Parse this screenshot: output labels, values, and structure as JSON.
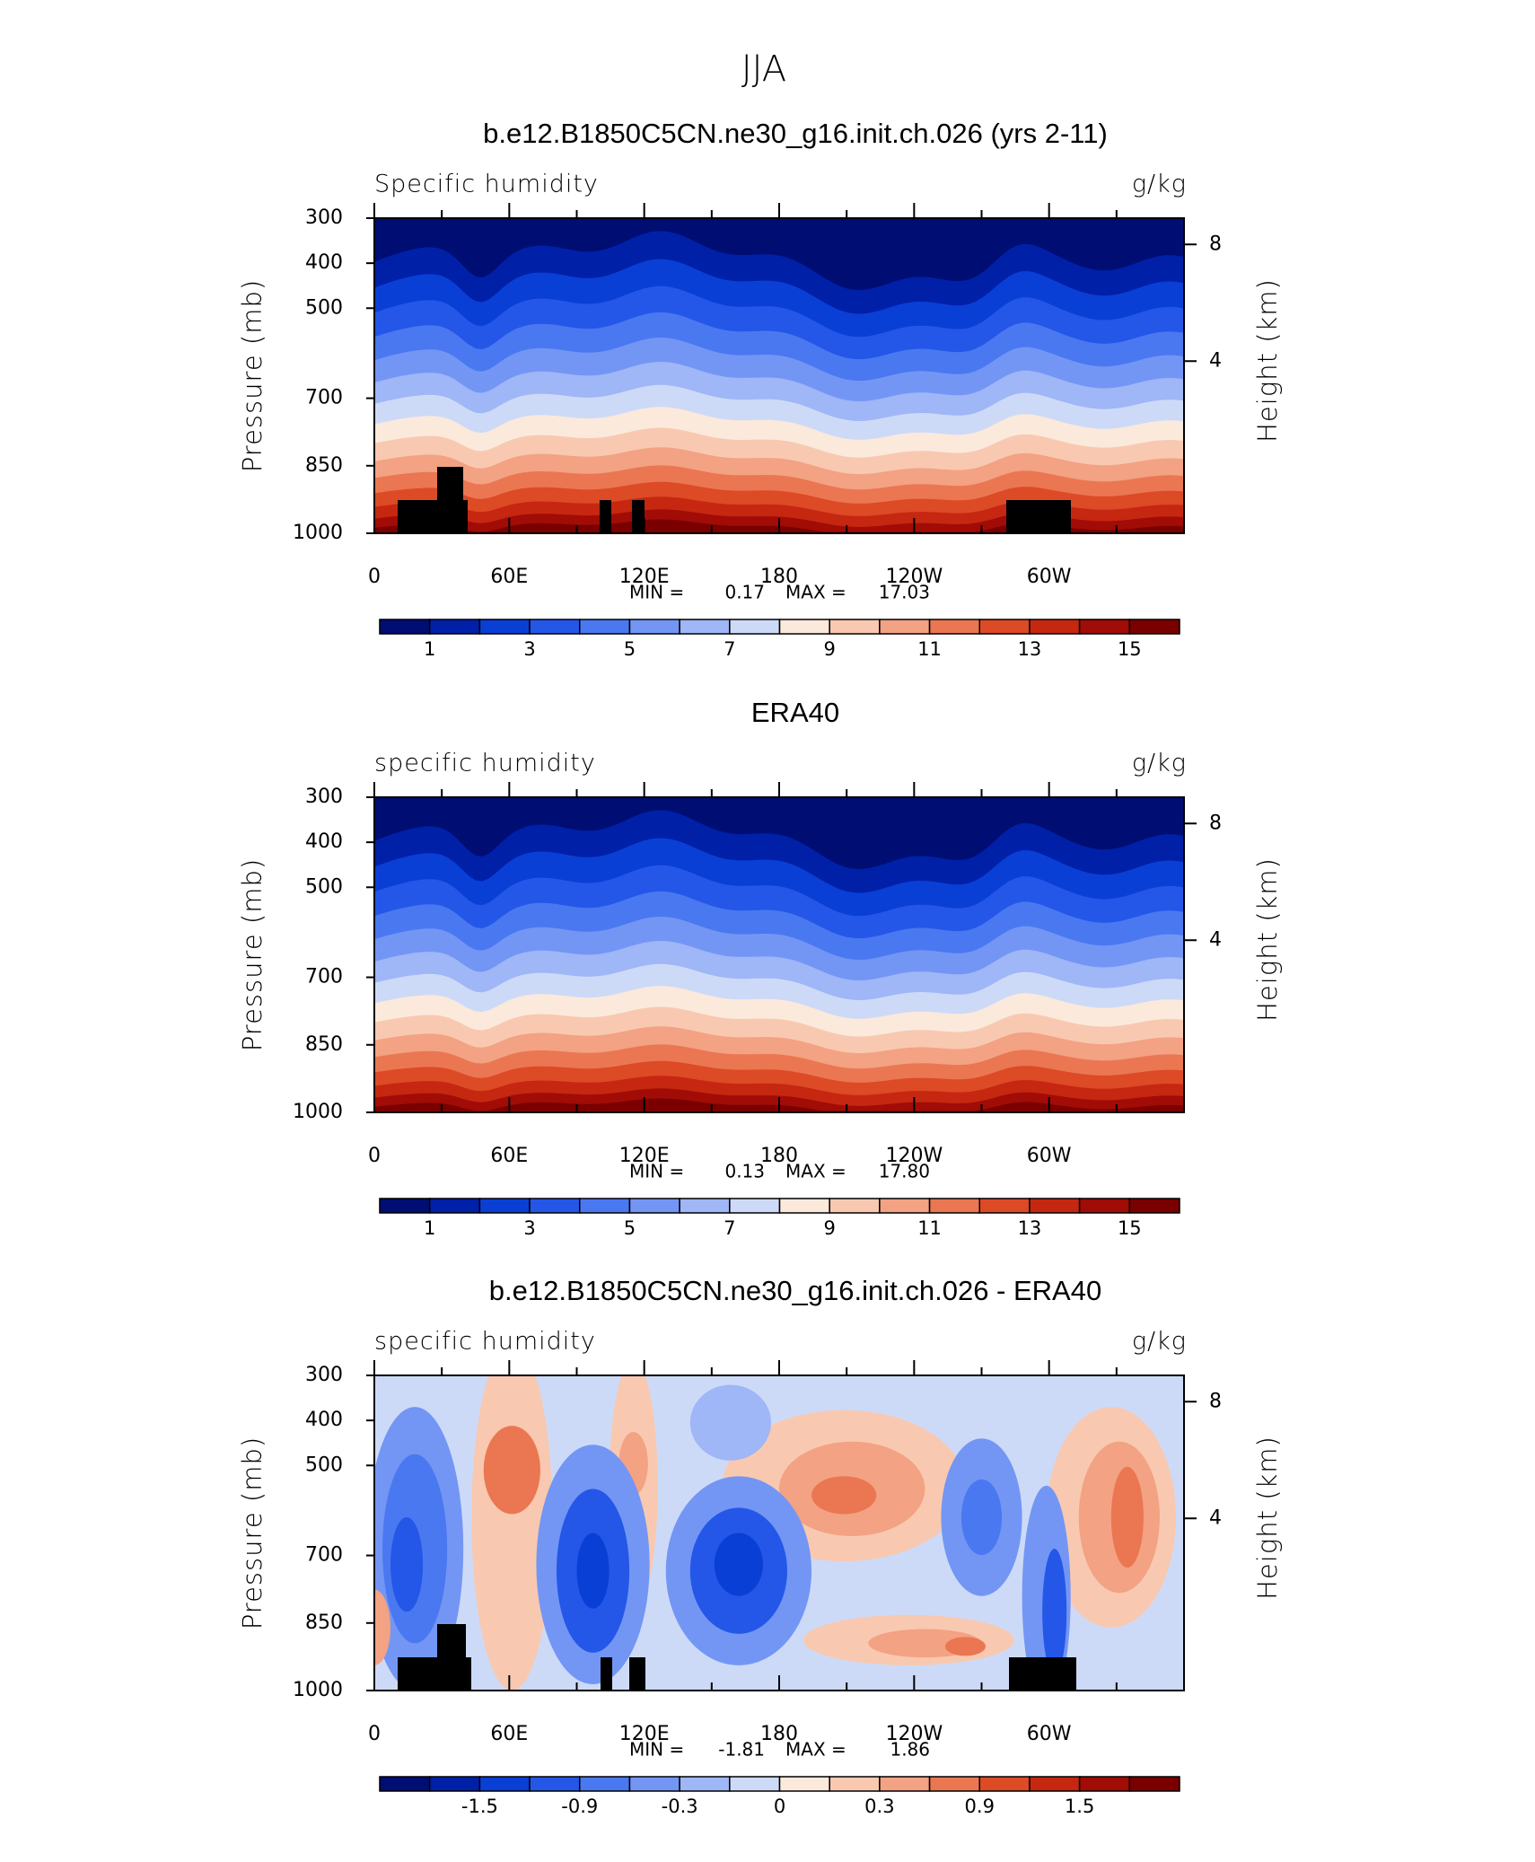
{
  "title": "JJA",
  "chart_data": [
    {
      "type": "contour",
      "title": "b.e12.B1850C5CN.ne30_g16.init.ch.026 (yrs 2-11)",
      "subtitle_left": "Specific humidity",
      "units": "g/kg",
      "ylabel": "Pressure (mb)",
      "y2label": "Height (km)",
      "xlim": [
        0,
        360
      ],
      "xticks": [
        0,
        {
          "value": 60,
          "label": "60E"
        },
        {
          "value": 120,
          "label": "120E"
        },
        180,
        {
          "value": 240,
          "label": "120W"
        },
        {
          "value": 300,
          "label": "60W"
        }
      ],
      "xminorticks": [
        30,
        90,
        150,
        210,
        270,
        330
      ],
      "ylim": [
        1000,
        300
      ],
      "yticks": [
        300,
        400,
        500,
        700,
        850,
        1000
      ],
      "y2lim": [
        -1.9,
        8.9
      ],
      "y2ticks": [
        4,
        8
      ],
      "min_label": "MIN =",
      "min": 0.17,
      "max_label": "MAX =",
      "max": 17.03,
      "colorbar": {
        "levels": [
          1,
          2,
          3,
          4,
          5,
          6,
          7,
          8,
          9,
          10,
          11,
          12,
          13,
          14,
          15
        ],
        "ticks": [
          1,
          3,
          5,
          7,
          9,
          11,
          13,
          15
        ],
        "colors": [
          "#000d73",
          "#0020a8",
          "#0a3fd6",
          "#2457e8",
          "#4a78f0",
          "#7396f5",
          "#9fb6f7",
          "#cddaf7",
          "#fbe9dc",
          "#f8c9b0",
          "#f3a283",
          "#ea7752",
          "#dd4a26",
          "#c62710",
          "#a10c06",
          "#7a0000"
        ]
      }
    },
    {
      "type": "contour",
      "title": "ERA40",
      "subtitle_left": "specific humidity",
      "units": "g/kg",
      "ylabel": "Pressure (mb)",
      "y2label": "Height (km)",
      "xlim": [
        0,
        360
      ],
      "xticks": [
        0,
        {
          "value": 60,
          "label": "60E"
        },
        {
          "value": 120,
          "label": "120E"
        },
        180,
        {
          "value": 240,
          "label": "120W"
        },
        {
          "value": 300,
          "label": "60W"
        }
      ],
      "xminorticks": [
        30,
        90,
        150,
        210,
        270,
        330
      ],
      "ylim": [
        1000,
        300
      ],
      "yticks": [
        300,
        400,
        500,
        700,
        850,
        1000
      ],
      "y2lim": [
        -1.9,
        8.9
      ],
      "y2ticks": [
        4,
        8
      ],
      "min_label": "MIN =",
      "min": 0.13,
      "max_label": "MAX =",
      "max": {
        "value": 17.8,
        "label": "17.80"
      },
      "colorbar": {
        "levels": [
          1,
          2,
          3,
          4,
          5,
          6,
          7,
          8,
          9,
          10,
          11,
          12,
          13,
          14,
          15
        ],
        "ticks": [
          1,
          3,
          5,
          7,
          9,
          11,
          13,
          15
        ],
        "colors": [
          "#000d73",
          "#0020a8",
          "#0a3fd6",
          "#2457e8",
          "#4a78f0",
          "#7396f5",
          "#9fb6f7",
          "#cddaf7",
          "#fbe9dc",
          "#f8c9b0",
          "#f3a283",
          "#ea7752",
          "#dd4a26",
          "#c62710",
          "#a10c06",
          "#7a0000"
        ]
      }
    },
    {
      "type": "contour",
      "title": "b.e12.B1850C5CN.ne30_g16.init.ch.026 - ERA40",
      "subtitle_left": "specific humidity",
      "units": "g/kg",
      "ylabel": "Pressure (mb)",
      "y2label": "Height (km)",
      "xlim": [
        0,
        360
      ],
      "xticks": [
        0,
        {
          "value": 60,
          "label": "60E"
        },
        {
          "value": 120,
          "label": "120E"
        },
        180,
        {
          "value": 240,
          "label": "120W"
        },
        {
          "value": 300,
          "label": "60W"
        }
      ],
      "xminorticks": [
        30,
        90,
        150,
        210,
        270,
        330
      ],
      "ylim": [
        1000,
        300
      ],
      "yticks": [
        300,
        400,
        500,
        700,
        850,
        1000
      ],
      "y2lim": [
        -1.9,
        8.9
      ],
      "y2ticks": [
        4,
        8
      ],
      "min_label": "MIN =",
      "min": -1.81,
      "max_label": "MAX =",
      "max": 1.86,
      "colorbar": {
        "levels": [
          -1.8,
          -1.5,
          -1.2,
          -0.9,
          -0.6,
          -0.3,
          -0.1,
          0,
          0.1,
          0.3,
          0.6,
          0.9,
          1.2,
          1.5,
          1.8
        ],
        "ticks": [
          -1.5,
          -0.9,
          -0.3,
          0,
          0.3,
          0.9,
          1.5
        ],
        "colors": [
          "#000d73",
          "#0020a8",
          "#0a3fd6",
          "#2457e8",
          "#4a78f0",
          "#7396f5",
          "#9fb6f7",
          "#cddaf7",
          "#fbe9dc",
          "#f8c9b0",
          "#f3a283",
          "#ea7752",
          "#dd4a26",
          "#c62710",
          "#a10c06",
          "#7a0000"
        ]
      }
    }
  ]
}
